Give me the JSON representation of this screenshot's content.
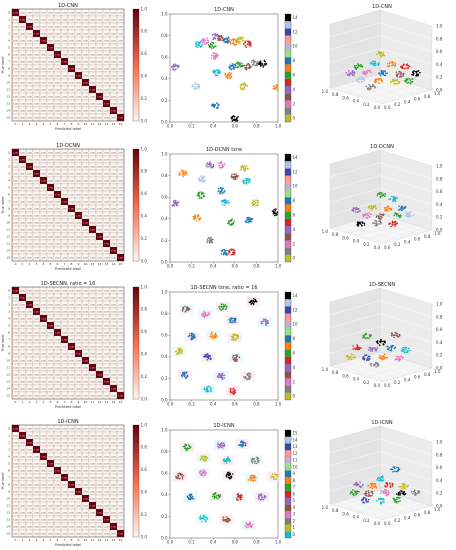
{
  "figure": {
    "background": "#ffffff"
  },
  "chart_data": [
    {
      "type": "heatmap",
      "row": 0,
      "title": "1D-CNN",
      "xlabel": "Predicted label",
      "ylabel": "True label",
      "classes": [
        "0",
        "1",
        "2",
        "3",
        "4",
        "5",
        "6",
        "7",
        "8",
        "9",
        "10",
        "11",
        "12",
        "13",
        "14",
        "15"
      ],
      "diagonal": 1.0,
      "off_diagonal": 0.0,
      "colorbar": {
        "ticks": [
          "0.0",
          "0.2",
          "0.4",
          "0.6",
          "0.8",
          "1.0"
        ],
        "colormap": "Reds"
      }
    },
    {
      "type": "scatter",
      "row": 0,
      "title": "1D-CNN",
      "xlim": [
        0,
        1
      ],
      "ylim": [
        0,
        1
      ],
      "xticks": [
        "0.0",
        "0.2",
        "0.4",
        "0.6",
        "0.8",
        "1.0"
      ],
      "yticks": [
        "0.0",
        "0.2",
        "0.4",
        "0.6",
        "0.8",
        "1.0"
      ],
      "colorbar": {
        "ticks": [
          "0",
          "2",
          "4",
          "6",
          "8",
          "10",
          "12",
          "14"
        ]
      },
      "clusters": [
        {
          "x": 0.27,
          "y": 0.72,
          "c": "#17becf"
        },
        {
          "x": 0.33,
          "y": 0.75,
          "c": "#e377c2"
        },
        {
          "x": 0.39,
          "y": 0.71,
          "c": "#2ca02c"
        },
        {
          "x": 0.42,
          "y": 0.79,
          "c": "#9467bd"
        },
        {
          "x": 0.47,
          "y": 0.77,
          "c": "#8c564b"
        },
        {
          "x": 0.53,
          "y": 0.76,
          "c": "#1f77b4"
        },
        {
          "x": 0.59,
          "y": 0.74,
          "c": "#ff7f0e"
        },
        {
          "x": 0.65,
          "y": 0.76,
          "c": "#bcbd22"
        },
        {
          "x": 0.72,
          "y": 0.72,
          "c": "#d62728"
        },
        {
          "x": 0.41,
          "y": 0.61,
          "c": "#e377c2"
        },
        {
          "x": 0.58,
          "y": 0.51,
          "c": "#1f77b4"
        },
        {
          "x": 0.64,
          "y": 0.53,
          "c": "#2ca02c"
        },
        {
          "x": 0.72,
          "y": 0.51,
          "c": "#8c564b"
        },
        {
          "x": 0.79,
          "y": 0.55,
          "c": "#7f7f7f"
        },
        {
          "x": 0.86,
          "y": 0.54,
          "c": "#000000"
        },
        {
          "x": 0.05,
          "y": 0.51,
          "c": "#9467bd"
        },
        {
          "x": 0.43,
          "y": 0.46,
          "c": "#17becf"
        },
        {
          "x": 0.54,
          "y": 0.43,
          "c": "#ff7f0e"
        },
        {
          "x": 0.24,
          "y": 0.33,
          "c": "#aec7e8"
        },
        {
          "x": 0.68,
          "y": 0.33,
          "c": "#bcbd22"
        },
        {
          "x": 0.99,
          "y": 0.32,
          "c": "#ff7f0e"
        },
        {
          "x": 0.42,
          "y": 0.15,
          "c": "#1f77b4"
        },
        {
          "x": 0.6,
          "y": 0.03,
          "c": "#000000"
        }
      ]
    },
    {
      "type": "scatter3d",
      "row": 0,
      "title": "1D-CNN",
      "axis_ticks": [
        "0.0",
        "0.2",
        "0.4",
        "0.6",
        "0.8",
        "1.0"
      ],
      "clusters": [
        {
          "u": 0.5,
          "v": 0.85,
          "c": "#bcbd22"
        },
        {
          "u": 0.28,
          "v": 0.62,
          "c": "#2ca02c"
        },
        {
          "u": 0.44,
          "v": 0.68,
          "c": "#17becf"
        },
        {
          "u": 0.6,
          "v": 0.66,
          "c": "#ff7f0e"
        },
        {
          "u": 0.74,
          "v": 0.62,
          "c": "#d62728"
        },
        {
          "u": 0.2,
          "v": 0.5,
          "c": "#9467bd"
        },
        {
          "u": 0.36,
          "v": 0.52,
          "c": "#e377c2"
        },
        {
          "u": 0.52,
          "v": 0.5,
          "c": "#1f77b4"
        },
        {
          "u": 0.68,
          "v": 0.48,
          "c": "#8c564b"
        },
        {
          "u": 0.84,
          "v": 0.5,
          "c": "#000000"
        },
        {
          "u": 0.3,
          "v": 0.38,
          "c": "#aec7e8"
        },
        {
          "u": 0.48,
          "v": 0.36,
          "c": "#ff7f0e"
        },
        {
          "u": 0.64,
          "v": 0.34,
          "c": "#bcbd22"
        },
        {
          "u": 0.78,
          "v": 0.36,
          "c": "#2ca02c"
        },
        {
          "u": 0.4,
          "v": 0.24,
          "c": "#7f7f7f"
        }
      ]
    },
    {
      "type": "heatmap",
      "row": 1,
      "title": "1D-DCNN",
      "xlabel": "Predicted label",
      "ylabel": "True label",
      "classes": [
        "0",
        "1",
        "2",
        "3",
        "4",
        "5",
        "6",
        "7",
        "8",
        "9",
        "10",
        "11",
        "12",
        "13",
        "14",
        "15"
      ],
      "diagonal": 1.0,
      "off_diagonal": 0.0,
      "colorbar": {
        "ticks": [
          "0.0",
          "0.2",
          "0.4",
          "0.6",
          "0.8",
          "1.0"
        ],
        "colormap": "Reds"
      }
    },
    {
      "type": "scatter",
      "row": 1,
      "title": "1D-DCNN tsne",
      "xlim": [
        0,
        1
      ],
      "ylim": [
        0,
        1
      ],
      "xticks": [
        "0.0",
        "0.2",
        "0.4",
        "0.6",
        "0.8",
        "1.0"
      ],
      "yticks": [
        "0.0",
        "0.2",
        "0.4",
        "0.6",
        "0.8",
        "1.0"
      ],
      "colorbar": {
        "ticks": [
          "0",
          "2",
          "4",
          "6",
          "8",
          "10",
          "12",
          "14"
        ]
      },
      "clusters": [
        {
          "x": 0.12,
          "y": 0.82,
          "c": "#ff7f0e"
        },
        {
          "x": 0.37,
          "y": 0.9,
          "c": "#9467bd"
        },
        {
          "x": 0.47,
          "y": 0.9,
          "c": "#e377c2"
        },
        {
          "x": 0.69,
          "y": 0.87,
          "c": "#bcbd22"
        },
        {
          "x": 0.3,
          "y": 0.77,
          "c": "#aec7e8"
        },
        {
          "x": 0.6,
          "y": 0.79,
          "c": "#8c564b"
        },
        {
          "x": 0.71,
          "y": 0.75,
          "c": "#17becf"
        },
        {
          "x": 0.29,
          "y": 0.62,
          "c": "#2ca02c"
        },
        {
          "x": 0.47,
          "y": 0.66,
          "c": "#1f77b4"
        },
        {
          "x": 0.05,
          "y": 0.54,
          "c": "#9467bd"
        },
        {
          "x": 0.51,
          "y": 0.55,
          "c": "#17becf"
        },
        {
          "x": 0.79,
          "y": 0.55,
          "c": "#bcbd22"
        },
        {
          "x": 0.98,
          "y": 0.46,
          "c": "#000000"
        },
        {
          "x": 0.25,
          "y": 0.41,
          "c": "#ff7f0e"
        },
        {
          "x": 0.56,
          "y": 0.37,
          "c": "#2ca02c"
        },
        {
          "x": 0.73,
          "y": 0.39,
          "c": "#1f77b4"
        },
        {
          "x": 0.37,
          "y": 0.2,
          "c": "#7f7f7f"
        },
        {
          "x": 0.51,
          "y": 0.09,
          "c": "#1f77b4"
        },
        {
          "x": 0.57,
          "y": 0.09,
          "c": "#d62728"
        }
      ]
    },
    {
      "type": "scatter3d",
      "row": 1,
      "title": "1D-DCNN",
      "axis_ticks": [
        "0.0",
        "0.2",
        "0.4",
        "0.6",
        "0.8",
        "1.0"
      ],
      "clusters": [
        {
          "u": 0.5,
          "v": 0.84,
          "c": "#2ca02c"
        },
        {
          "u": 0.62,
          "v": 0.76,
          "c": "#17becf"
        },
        {
          "u": 0.26,
          "v": 0.56,
          "c": "#9467bd"
        },
        {
          "u": 0.42,
          "v": 0.6,
          "c": "#bcbd22"
        },
        {
          "u": 0.56,
          "v": 0.58,
          "c": "#ff7f0e"
        },
        {
          "u": 0.7,
          "v": 0.6,
          "c": "#1f77b4"
        },
        {
          "u": 0.36,
          "v": 0.46,
          "c": "#e377c2"
        },
        {
          "u": 0.5,
          "v": 0.44,
          "c": "#8c564b"
        },
        {
          "u": 0.66,
          "v": 0.46,
          "c": "#2ca02c"
        },
        {
          "u": 0.78,
          "v": 0.48,
          "c": "#aec7e8"
        },
        {
          "u": 0.3,
          "v": 0.3,
          "c": "#000000"
        },
        {
          "u": 0.46,
          "v": 0.32,
          "c": "#7f7f7f"
        },
        {
          "u": 0.62,
          "v": 0.3,
          "c": "#d62728"
        }
      ]
    },
    {
      "type": "heatmap",
      "row": 2,
      "title": "1D-SECNN, ratio = 16",
      "xlabel": "Predicted label",
      "ylabel": "True label",
      "classes": [
        "0",
        "1",
        "2",
        "3",
        "4",
        "5",
        "6",
        "7",
        "8",
        "9",
        "10",
        "11",
        "12",
        "13",
        "14",
        "15"
      ],
      "diagonal": 1.0,
      "off_diagonal": 0.0,
      "colorbar": {
        "ticks": [
          "0.0",
          "0.2",
          "0.4",
          "0.6",
          "0.8",
          "1.0"
        ],
        "colormap": "Reds"
      }
    },
    {
      "type": "scatter",
      "row": 2,
      "title": "1D-SECNN tsne, ratio = 16",
      "xlim": [
        0,
        1
      ],
      "ylim": [
        0,
        1
      ],
      "xticks": [
        "0.0",
        "0.2",
        "0.4",
        "0.6",
        "0.8",
        "1.0"
      ],
      "yticks": [
        "0.0",
        "0.2",
        "0.4",
        "0.6",
        "0.8",
        "1.0"
      ],
      "colorbar": {
        "ticks": [
          "0",
          "2",
          "4",
          "6",
          "8",
          "10",
          "12",
          "14"
        ]
      },
      "clusters": [
        {
          "x": 0.77,
          "y": 0.91,
          "c": "#000000"
        },
        {
          "x": 0.15,
          "y": 0.84,
          "c": "#8c564b"
        },
        {
          "x": 0.49,
          "y": 0.86,
          "c": "#2ca02c"
        },
        {
          "x": 0.33,
          "y": 0.79,
          "c": "#e377c2"
        },
        {
          "x": 0.58,
          "y": 0.74,
          "c": "#1f77b4"
        },
        {
          "x": 0.88,
          "y": 0.72,
          "c": "#9467bd"
        },
        {
          "x": 0.2,
          "y": 0.59,
          "c": "#1f77b4"
        },
        {
          "x": 0.4,
          "y": 0.6,
          "c": "#ff7f0e"
        },
        {
          "x": 0.6,
          "y": 0.58,
          "c": "#bcbd22"
        },
        {
          "x": 0.08,
          "y": 0.45,
          "c": "#bcbd22"
        },
        {
          "x": 0.35,
          "y": 0.4,
          "c": "#3949ab"
        },
        {
          "x": 0.61,
          "y": 0.39,
          "c": "#8c564b"
        },
        {
          "x": 0.14,
          "y": 0.23,
          "c": "#1f77b4"
        },
        {
          "x": 0.47,
          "y": 0.22,
          "c": "#9467bd"
        },
        {
          "x": 0.72,
          "y": 0.22,
          "c": "#7f7f7f"
        },
        {
          "x": 0.35,
          "y": 0.1,
          "c": "#17becf"
        },
        {
          "x": 0.58,
          "y": 0.08,
          "c": "#d62728"
        }
      ]
    },
    {
      "type": "scatter3d",
      "row": 2,
      "title": "1D-SECNN",
      "axis_ticks": [
        "0.0",
        "0.2",
        "0.4",
        "0.6",
        "0.8",
        "1.0"
      ],
      "clusters": [
        {
          "u": 0.36,
          "v": 0.78,
          "c": "#2ca02c"
        },
        {
          "u": 0.64,
          "v": 0.8,
          "c": "#8c564b"
        },
        {
          "u": 0.5,
          "v": 0.66,
          "c": "#000000"
        },
        {
          "u": 0.26,
          "v": 0.56,
          "c": "#d62728"
        },
        {
          "u": 0.42,
          "v": 0.54,
          "c": "#9467bd"
        },
        {
          "u": 0.6,
          "v": 0.56,
          "c": "#1f77b4"
        },
        {
          "u": 0.74,
          "v": 0.52,
          "c": "#17becf"
        },
        {
          "u": 0.2,
          "v": 0.4,
          "c": "#bcbd22"
        },
        {
          "u": 0.36,
          "v": 0.38,
          "c": "#3949ab"
        },
        {
          "u": 0.52,
          "v": 0.4,
          "c": "#ff7f0e"
        },
        {
          "u": 0.68,
          "v": 0.36,
          "c": "#e377c2"
        },
        {
          "u": 0.44,
          "v": 0.26,
          "c": "#7f7f7f"
        }
      ]
    },
    {
      "type": "heatmap",
      "row": 3,
      "title": "1D-ICNN",
      "xlabel": "Predicted label",
      "ylabel": "True label",
      "classes": [
        "0",
        "1",
        "2",
        "3",
        "4",
        "5",
        "6",
        "7",
        "8",
        "9",
        "10",
        "11",
        "12",
        "13",
        "14",
        "15"
      ],
      "diagonal": 1.0,
      "off_diagonal": 0.0,
      "colorbar": {
        "ticks": [
          "0.0",
          "0.2",
          "0.4",
          "0.6",
          "0.8",
          "1.0"
        ],
        "colormap": "Reds"
      }
    },
    {
      "type": "scatter",
      "row": 3,
      "title": "1D-ICNN",
      "xlim": [
        0,
        1
      ],
      "ylim": [
        0,
        1
      ],
      "xticks": [
        "0.0",
        "0.2",
        "0.4",
        "0.6",
        "0.8",
        "1.0"
      ],
      "yticks": [
        "0.0",
        "0.2",
        "0.4",
        "0.6",
        "0.8",
        "1.0"
      ],
      "colorbar": {
        "ticks": [
          "0",
          "1",
          "2",
          "3",
          "4",
          "5",
          "6",
          "7",
          "8",
          "9",
          "10",
          "11",
          "12",
          "13",
          "14",
          "15"
        ]
      },
      "clusters": [
        {
          "x": 0.16,
          "y": 0.84,
          "c": "#2ca02c"
        },
        {
          "x": 0.47,
          "y": 0.86,
          "c": "#9467bd"
        },
        {
          "x": 0.67,
          "y": 0.87,
          "c": "#1f77b4"
        },
        {
          "x": 0.31,
          "y": 0.74,
          "c": "#bcbd22"
        },
        {
          "x": 0.53,
          "y": 0.72,
          "c": "#17becf"
        },
        {
          "x": 0.79,
          "y": 0.72,
          "c": "#7f7f7f"
        },
        {
          "x": 0.09,
          "y": 0.57,
          "c": "#8c564b"
        },
        {
          "x": 0.3,
          "y": 0.6,
          "c": "#e377c2"
        },
        {
          "x": 0.55,
          "y": 0.58,
          "c": "#000000"
        },
        {
          "x": 0.76,
          "y": 0.55,
          "c": "#ff7f0e"
        },
        {
          "x": 0.97,
          "y": 0.57,
          "c": "#bcbd22"
        },
        {
          "x": 0.19,
          "y": 0.38,
          "c": "#1f77b4"
        },
        {
          "x": 0.43,
          "y": 0.39,
          "c": "#2ca02c"
        },
        {
          "x": 0.64,
          "y": 0.38,
          "c": "#d62728"
        },
        {
          "x": 0.85,
          "y": 0.38,
          "c": "#9467bd"
        },
        {
          "x": 0.31,
          "y": 0.18,
          "c": "#17becf"
        },
        {
          "x": 0.52,
          "y": 0.17,
          "c": "#8c564b"
        },
        {
          "x": 0.73,
          "y": 0.12,
          "c": "#e377c2"
        }
      ]
    },
    {
      "type": "scatter3d",
      "row": 3,
      "title": "1D-ICNN",
      "axis_ticks": [
        "0.0",
        "0.2",
        "0.4",
        "0.6",
        "0.8",
        "1.0"
      ],
      "clusters": [
        {
          "u": 0.64,
          "v": 0.86,
          "c": "#1f77b4"
        },
        {
          "u": 0.5,
          "v": 0.7,
          "c": "#17becf"
        },
        {
          "u": 0.28,
          "v": 0.58,
          "c": "#9467bd"
        },
        {
          "u": 0.42,
          "v": 0.56,
          "c": "#ff7f0e"
        },
        {
          "u": 0.58,
          "v": 0.58,
          "c": "#d62728"
        },
        {
          "u": 0.72,
          "v": 0.56,
          "c": "#bcbd22"
        },
        {
          "u": 0.24,
          "v": 0.44,
          "c": "#2ca02c"
        },
        {
          "u": 0.38,
          "v": 0.42,
          "c": "#8c564b"
        },
        {
          "u": 0.54,
          "v": 0.44,
          "c": "#e377c2"
        },
        {
          "u": 0.7,
          "v": 0.42,
          "c": "#000000"
        },
        {
          "u": 0.84,
          "v": 0.44,
          "c": "#7f7f7f"
        },
        {
          "u": 0.34,
          "v": 0.3,
          "c": "#3949ab"
        },
        {
          "u": 0.5,
          "v": 0.28,
          "c": "#17becf"
        },
        {
          "u": 0.66,
          "v": 0.3,
          "c": "#2ca02c"
        }
      ]
    }
  ]
}
